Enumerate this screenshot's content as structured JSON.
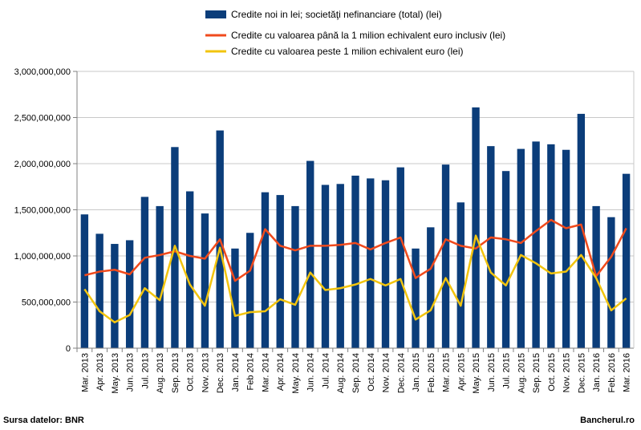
{
  "source_note": "Sursa datelor: BNR",
  "brand": "Bancherul.ro",
  "colors": {
    "bars": "#0b3d7a",
    "line1": "#f04a1c",
    "line2": "#f2c40e",
    "grid": "#c8c8c8"
  },
  "chart_data": {
    "type": "bar",
    "title": "",
    "xlabel": "",
    "ylabel": "",
    "ylim": [
      0,
      3000000000
    ],
    "yticks": [
      0,
      500000000,
      1000000000,
      1500000000,
      2000000000,
      2500000000,
      3000000000
    ],
    "ytick_labels": [
      "0",
      "500,000,000",
      "1,000,000,000",
      "1,500,000,000",
      "2,000,000,000",
      "2,500,000,000",
      "3,000,000,000"
    ],
    "grid": true,
    "legend_position": "top",
    "categories": [
      "Mar. 2013",
      "Apr. 2013",
      "May. 2013",
      "Jun. 2013",
      "Jul. 2013",
      "Aug. 2013",
      "Sep. 2013",
      "Oct. 2013",
      "Nov. 2013",
      "Dec. 2013",
      "Jan. 2014",
      "Feb 2014",
      "Mar. 2014",
      "Apr. 2014",
      "May. 2014",
      "Jun. 2014",
      "Jul. 2014",
      "Aug. 2014",
      "Sep. 2014",
      "Oct. 2014",
      "Nov. 2014",
      "Dec. 2014",
      "Jan. 2015",
      "Feb. 2015",
      "Mar. 2015",
      "Apr. 2015",
      "May. 2015",
      "Jun. 2015",
      "Jul. 2015",
      "Aug. 2015",
      "Sep. 2015",
      "Oct. 2015",
      "Nov. 2015",
      "Dec. 2015",
      "Jan. 2016",
      "Feb. 2016",
      "Mar. 2016"
    ],
    "series": [
      {
        "name": "Credite noi in lei; societăţi nefinanciare (total) (lei)",
        "type": "bar",
        "values": [
          1450000000,
          1240000000,
          1130000000,
          1170000000,
          1640000000,
          1540000000,
          2180000000,
          1700000000,
          1460000000,
          2360000000,
          1080000000,
          1250000000,
          1690000000,
          1660000000,
          1540000000,
          2030000000,
          1770000000,
          1780000000,
          1870000000,
          1840000000,
          1820000000,
          1960000000,
          1080000000,
          1310000000,
          1990000000,
          1580000000,
          2610000000,
          2190000000,
          1920000000,
          2160000000,
          2240000000,
          2210000000,
          2150000000,
          2540000000,
          1540000000,
          1420000000,
          1890000000
        ]
      },
      {
        "name": "Credite cu valoarea până la 1 milion echivalent euro inclusiv (lei)",
        "type": "line",
        "values": [
          790000000,
          830000000,
          850000000,
          800000000,
          980000000,
          1010000000,
          1050000000,
          1000000000,
          970000000,
          1180000000,
          730000000,
          840000000,
          1290000000,
          1110000000,
          1060000000,
          1110000000,
          1110000000,
          1120000000,
          1140000000,
          1070000000,
          1140000000,
          1200000000,
          760000000,
          860000000,
          1180000000,
          1110000000,
          1080000000,
          1200000000,
          1180000000,
          1140000000,
          1270000000,
          1390000000,
          1300000000,
          1340000000,
          780000000,
          990000000,
          1300000000
        ]
      },
      {
        "name": "Credite cu valoarea peste 1 milion echivalent euro (lei)",
        "type": "line",
        "values": [
          640000000,
          400000000,
          280000000,
          360000000,
          650000000,
          520000000,
          1110000000,
          690000000,
          460000000,
          1090000000,
          350000000,
          390000000,
          400000000,
          530000000,
          470000000,
          820000000,
          630000000,
          650000000,
          690000000,
          750000000,
          680000000,
          750000000,
          310000000,
          410000000,
          760000000,
          460000000,
          1220000000,
          820000000,
          680000000,
          1010000000,
          920000000,
          810000000,
          830000000,
          1010000000,
          760000000,
          410000000,
          540000000
        ]
      }
    ]
  }
}
